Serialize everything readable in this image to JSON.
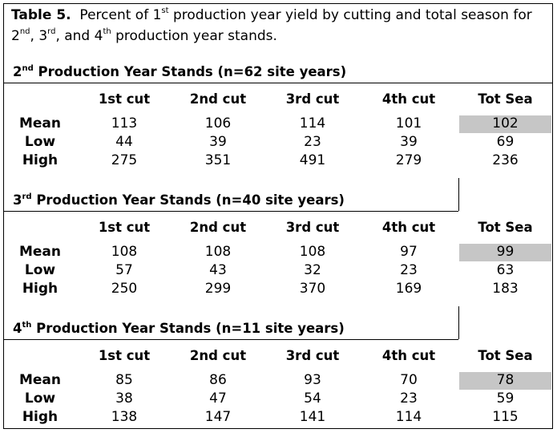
{
  "caption": {
    "prefix": "Table 5.",
    "t1": "Percent of 1",
    "sup1": "st",
    "t2": " production year yield by cutting and total season for",
    "t3": "2",
    "sup2": "nd",
    "t4": ", 3",
    "sup3": "rd",
    "t5": ", and 4",
    "sup4": "th",
    "t6": " production year stands."
  },
  "columns": [
    "1st cut",
    "2nd cut",
    "3rd cut",
    "4th cut",
    "Tot Sea"
  ],
  "sections": [
    {
      "num": "2",
      "sup": "nd",
      "title_rest": " Production Year Stands (n=62 site years)",
      "rows": [
        {
          "label": "Mean",
          "values": [
            "113",
            "106",
            "114",
            "101",
            "102"
          ]
        },
        {
          "label": "Low",
          "values": [
            "44",
            "39",
            "23",
            "39",
            "69"
          ]
        },
        {
          "label": "High",
          "values": [
            "275",
            "351",
            "491",
            "279",
            "236"
          ]
        }
      ]
    },
    {
      "num": "3",
      "sup": "rd",
      "title_rest": " Production Year Stands (n=40 site years)",
      "rows": [
        {
          "label": "Mean",
          "values": [
            "108",
            "108",
            "108",
            "97",
            "99"
          ]
        },
        {
          "label": "Low",
          "values": [
            "57",
            "43",
            "32",
            "23",
            "63"
          ]
        },
        {
          "label": "High",
          "values": [
            "250",
            "299",
            "370",
            "169",
            "183"
          ]
        }
      ]
    },
    {
      "num": "4",
      "sup": "th",
      "title_rest": " Production Year Stands (n=11 site years)",
      "rows": [
        {
          "label": "Mean",
          "values": [
            "85",
            "86",
            "93",
            "70",
            "78"
          ]
        },
        {
          "label": "Low",
          "values": [
            "38",
            "47",
            "54",
            "23",
            "59"
          ]
        },
        {
          "label": "High",
          "values": [
            "138",
            "147",
            "141",
            "114",
            "115"
          ]
        }
      ]
    }
  ],
  "colors": {
    "highlight": "#c6c6c6"
  }
}
